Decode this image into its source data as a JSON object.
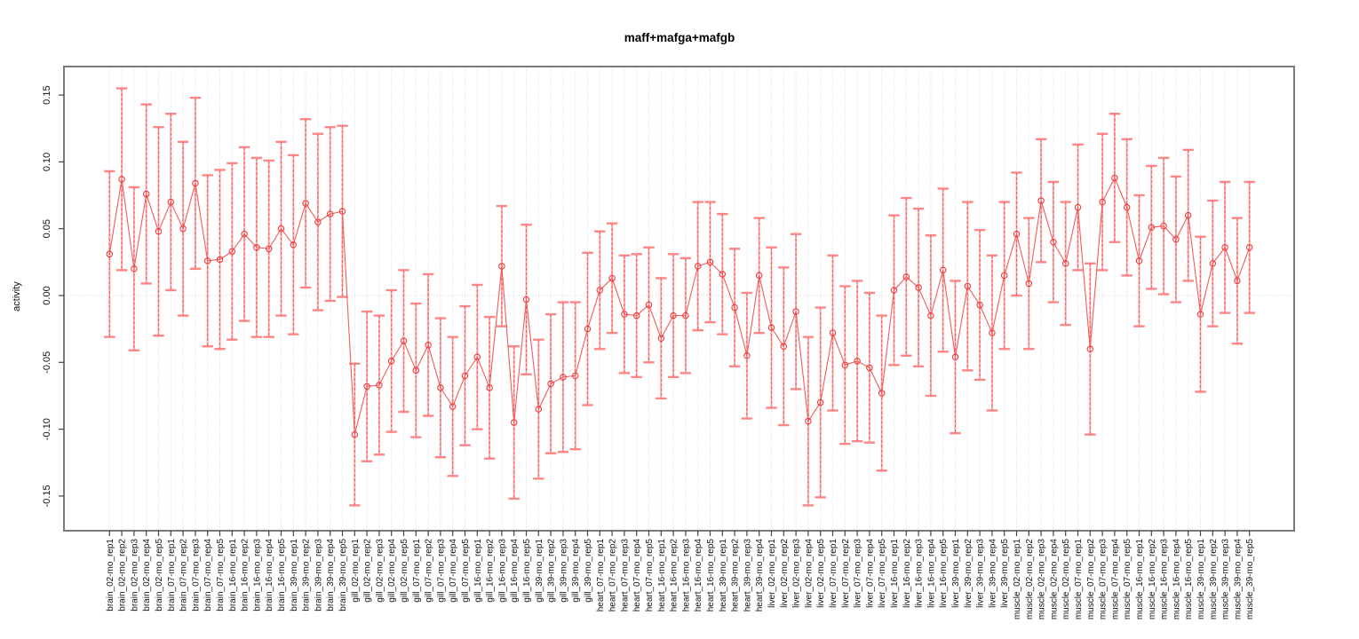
{
  "figure": {
    "title": "maff+mafga+mafgb",
    "background": "#ffffff"
  },
  "chart_data": {
    "type": "line",
    "subtype": "point-estimates-with-error-bars",
    "title": "maff+mafga+mafgb",
    "xlabel": "",
    "ylabel": "activity",
    "ylim": [
      -0.176,
      0.172
    ],
    "yticks": [
      0.15,
      0.1,
      0.05,
      0.0,
      -0.05,
      -0.1,
      -0.15
    ],
    "ytick_labels": [
      "0.15",
      "0.10",
      "0.05",
      "0.00",
      "-0.05",
      "-0.10",
      "-0.15"
    ],
    "grid": "light dotted vertical gridline at every category; dotted horizontal line at y=0; no other horizontal gridlines",
    "legend": "none",
    "categories": [
      "brain_02-mo_rep1",
      "brain_02-mo_rep2",
      "brain_02-mo_rep3",
      "brain_02-mo_rep4",
      "brain_02-mo_rep5",
      "brain_07-mo_rep1",
      "brain_07-mo_rep2",
      "brain_07-mo_rep3",
      "brain_07-mo_rep4",
      "brain_07-mo_rep5",
      "brain_16-mo_rep1",
      "brain_16-mo_rep2",
      "brain_16-mo_rep3",
      "brain_16-mo_rep4",
      "brain_16-mo_rep5",
      "brain_39-mo_rep1",
      "brain_39-mo_rep2",
      "brain_39-mo_rep3",
      "brain_39-mo_rep4",
      "brain_39-mo_rep5",
      "gill_02-mo_rep1",
      "gill_02-mo_rep2",
      "gill_02-mo_rep3",
      "gill_02-mo_rep4",
      "gill_02-mo_rep5",
      "gill_07-mo_rep1",
      "gill_07-mo_rep2",
      "gill_07-mo_rep3",
      "gill_07-mo_rep4",
      "gill_07-mo_rep5",
      "gill_16-mo_rep1",
      "gill_16-mo_rep2",
      "gill_16-mo_rep3",
      "gill_16-mo_rep4",
      "gill_16-mo_rep5",
      "gill_39-mo_rep1",
      "gill_39-mo_rep2",
      "gill_39-mo_rep3",
      "gill_39-mo_rep4",
      "gill_39-mo_rep5",
      "heart_07-mo_rep1",
      "heart_07-mo_rep2",
      "heart_07-mo_rep3",
      "heart_07-mo_rep4",
      "heart_07-mo_rep5",
      "heart_16-mo_rep1",
      "heart_16-mo_rep2",
      "heart_16-mo_rep3",
      "heart_16-mo_rep4",
      "heart_16-mo_rep5",
      "heart_39-mo_rep1",
      "heart_39-mo_rep2",
      "heart_39-mo_rep3",
      "heart_39-mo_rep4",
      "liver_02-mo_rep1",
      "liver_02-mo_rep2",
      "liver_02-mo_rep3",
      "liver_02-mo_rep4",
      "liver_02-mo_rep5",
      "liver_07-mo_rep1",
      "liver_07-mo_rep2",
      "liver_07-mo_rep3",
      "liver_07-mo_rep4",
      "liver_07-mo_rep5",
      "liver_16-mo_rep1",
      "liver_16-mo_rep2",
      "liver_16-mo_rep3",
      "liver_16-mo_rep4",
      "liver_16-mo_rep5",
      "liver_39-mo_rep1",
      "liver_39-mo_rep2",
      "liver_39-mo_rep3",
      "liver_39-mo_rep4",
      "liver_39-mo_rep5",
      "muscle_02-mo_rep1",
      "muscle_02-mo_rep2",
      "muscle_02-mo_rep3",
      "muscle_02-mo_rep4",
      "muscle_02-mo_rep5",
      "muscle_07-mo_rep1",
      "muscle_07-mo_rep2",
      "muscle_07-mo_rep3",
      "muscle_07-mo_rep4",
      "muscle_07-mo_rep5",
      "muscle_16-mo_rep1",
      "muscle_16-mo_rep2",
      "muscle_16-mo_rep3",
      "muscle_16-mo_rep4",
      "muscle_16-mo_rep5",
      "muscle_39-mo_rep1",
      "muscle_39-mo_rep2",
      "muscle_39-mo_rep3",
      "muscle_39-mo_rep4",
      "muscle_39-mo_rep5"
    ],
    "values": [
      0.031,
      0.087,
      0.02,
      0.076,
      0.048,
      0.07,
      0.05,
      0.084,
      0.026,
      0.027,
      0.033,
      0.046,
      0.036,
      0.035,
      0.05,
      0.038,
      0.069,
      0.055,
      0.061,
      0.063,
      -0.104,
      -0.068,
      -0.067,
      -0.049,
      -0.034,
      -0.056,
      -0.037,
      -0.069,
      -0.083,
      -0.06,
      -0.046,
      -0.069,
      0.022,
      -0.095,
      -0.003,
      -0.085,
      -0.066,
      -0.061,
      -0.06,
      -0.025,
      0.004,
      0.013,
      -0.014,
      -0.015,
      -0.007,
      -0.032,
      -0.015,
      -0.015,
      0.022,
      0.025,
      0.016,
      -0.009,
      -0.045,
      0.015,
      -0.024,
      -0.038,
      -0.012,
      -0.094,
      -0.08,
      -0.028,
      -0.052,
      -0.049,
      -0.054,
      -0.073,
      0.004,
      0.014,
      0.006,
      -0.015,
      0.019,
      -0.046,
      0.007,
      -0.007,
      -0.028,
      0.015,
      0.046,
      0.009,
      0.071,
      0.04,
      0.024,
      0.066,
      -0.04,
      0.07,
      0.088,
      0.066,
      0.026,
      0.051,
      0.052,
      0.042,
      0.06,
      -0.014,
      0.024,
      0.036,
      0.011,
      0.036
    ],
    "ci_low": [
      -0.031,
      0.019,
      -0.041,
      0.009,
      -0.03,
      0.004,
      -0.015,
      0.02,
      -0.038,
      -0.04,
      -0.033,
      -0.019,
      -0.031,
      -0.031,
      -0.015,
      -0.029,
      0.006,
      -0.011,
      -0.004,
      -0.001,
      -0.157,
      -0.124,
      -0.119,
      -0.102,
      -0.087,
      -0.106,
      -0.09,
      -0.121,
      -0.135,
      -0.112,
      -0.1,
      -0.122,
      -0.023,
      -0.152,
      -0.059,
      -0.137,
      -0.118,
      -0.117,
      -0.115,
      -0.082,
      -0.04,
      -0.028,
      -0.058,
      -0.061,
      -0.05,
      -0.077,
      -0.061,
      -0.058,
      -0.026,
      -0.02,
      -0.029,
      -0.053,
      -0.092,
      -0.028,
      -0.084,
      -0.097,
      -0.07,
      -0.157,
      -0.151,
      -0.086,
      -0.111,
      -0.109,
      -0.11,
      -0.131,
      -0.052,
      -0.045,
      -0.053,
      -0.075,
      -0.042,
      -0.103,
      -0.056,
      -0.063,
      -0.086,
      -0.04,
      0.0,
      -0.04,
      0.025,
      -0.005,
      -0.022,
      0.019,
      -0.104,
      0.019,
      0.04,
      0.015,
      -0.023,
      0.005,
      0.001,
      -0.005,
      0.011,
      -0.072,
      -0.023,
      -0.013,
      -0.036,
      -0.013
    ],
    "ci_high": [
      0.093,
      0.155,
      0.081,
      0.143,
      0.126,
      0.136,
      0.115,
      0.148,
      0.09,
      0.094,
      0.099,
      0.111,
      0.103,
      0.101,
      0.115,
      0.105,
      0.132,
      0.121,
      0.126,
      0.127,
      -0.051,
      -0.012,
      -0.015,
      0.004,
      0.019,
      -0.006,
      0.016,
      -0.017,
      -0.031,
      -0.008,
      0.008,
      -0.016,
      0.067,
      -0.038,
      0.053,
      -0.033,
      -0.014,
      -0.005,
      -0.005,
      0.032,
      0.048,
      0.054,
      0.03,
      0.031,
      0.036,
      0.013,
      0.031,
      0.028,
      0.07,
      0.07,
      0.061,
      0.035,
      0.002,
      0.058,
      0.036,
      0.021,
      0.046,
      -0.031,
      -0.009,
      0.03,
      0.007,
      0.011,
      0.002,
      -0.015,
      0.06,
      0.073,
      0.065,
      0.045,
      0.08,
      0.011,
      0.07,
      0.049,
      0.03,
      0.07,
      0.092,
      0.058,
      0.117,
      0.085,
      0.07,
      0.113,
      0.024,
      0.121,
      0.136,
      0.117,
      0.075,
      0.097,
      0.103,
      0.089,
      0.109,
      0.044,
      0.071,
      0.085,
      0.058,
      0.085
    ]
  },
  "colors": {
    "point": "#ee3b3b",
    "series_line": "#f25c5c",
    "errorbar_solid": "rgba(255,128,128,0.65)",
    "errorbar_dashed": "rgba(237,68,68,0.80)",
    "errorbar_cap": "rgba(255,128,128,0.95)",
    "gridline": "#d7d7d7",
    "plot_border": "#7a7a7a",
    "tick": "#444444",
    "tick_label": "#111111"
  }
}
